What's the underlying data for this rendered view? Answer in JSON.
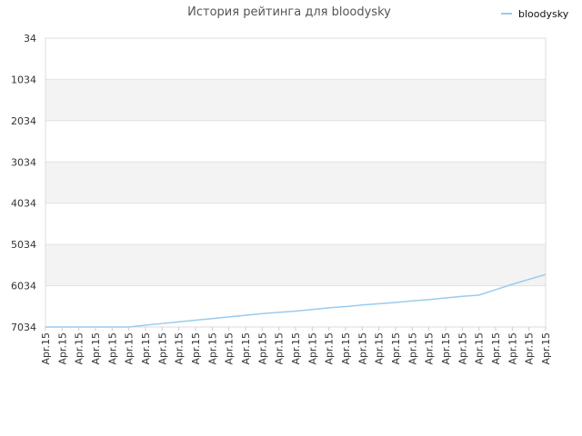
{
  "chart_data": {
    "type": "line",
    "title": "История рейтинга для bloodysky",
    "xlabel": "",
    "ylabel": "",
    "categories": [
      "Apr.15",
      "Apr.15",
      "Apr.15",
      "Apr.15",
      "Apr.15",
      "Apr.15",
      "Apr.15",
      "Apr.15",
      "Apr.15",
      "Apr.15",
      "Apr.15",
      "Apr.15",
      "Apr.15",
      "Apr.15",
      "Apr.15",
      "Apr.15",
      "Apr.15",
      "Apr.15",
      "Apr.15",
      "Apr.15",
      "Apr.15",
      "Apr.15",
      "Apr.15",
      "Apr.15",
      "Apr.15",
      "Apr.15",
      "Apr.15",
      "Apr.15",
      "Apr.15",
      "Apr.15",
      "Apr.15"
    ],
    "y_ticks": [
      "34",
      "1034",
      "2034",
      "3034",
      "4034",
      "5034",
      "6034",
      "7034"
    ],
    "ylim": [
      34,
      7034
    ],
    "y_inverted": true,
    "grid": "alternating horizontal bands",
    "legend_position": "top-right",
    "series": [
      {
        "name": "bloodysky",
        "color": "#99ccee",
        "values": [
          7034,
          7034,
          7034,
          7034,
          7034,
          7034,
          6990,
          6950,
          6910,
          6870,
          6830,
          6790,
          6750,
          6710,
          6680,
          6650,
          6610,
          6570,
          6540,
          6500,
          6470,
          6440,
          6400,
          6370,
          6330,
          6290,
          6260,
          6130,
          6000,
          5880,
          5760
        ]
      }
    ]
  }
}
